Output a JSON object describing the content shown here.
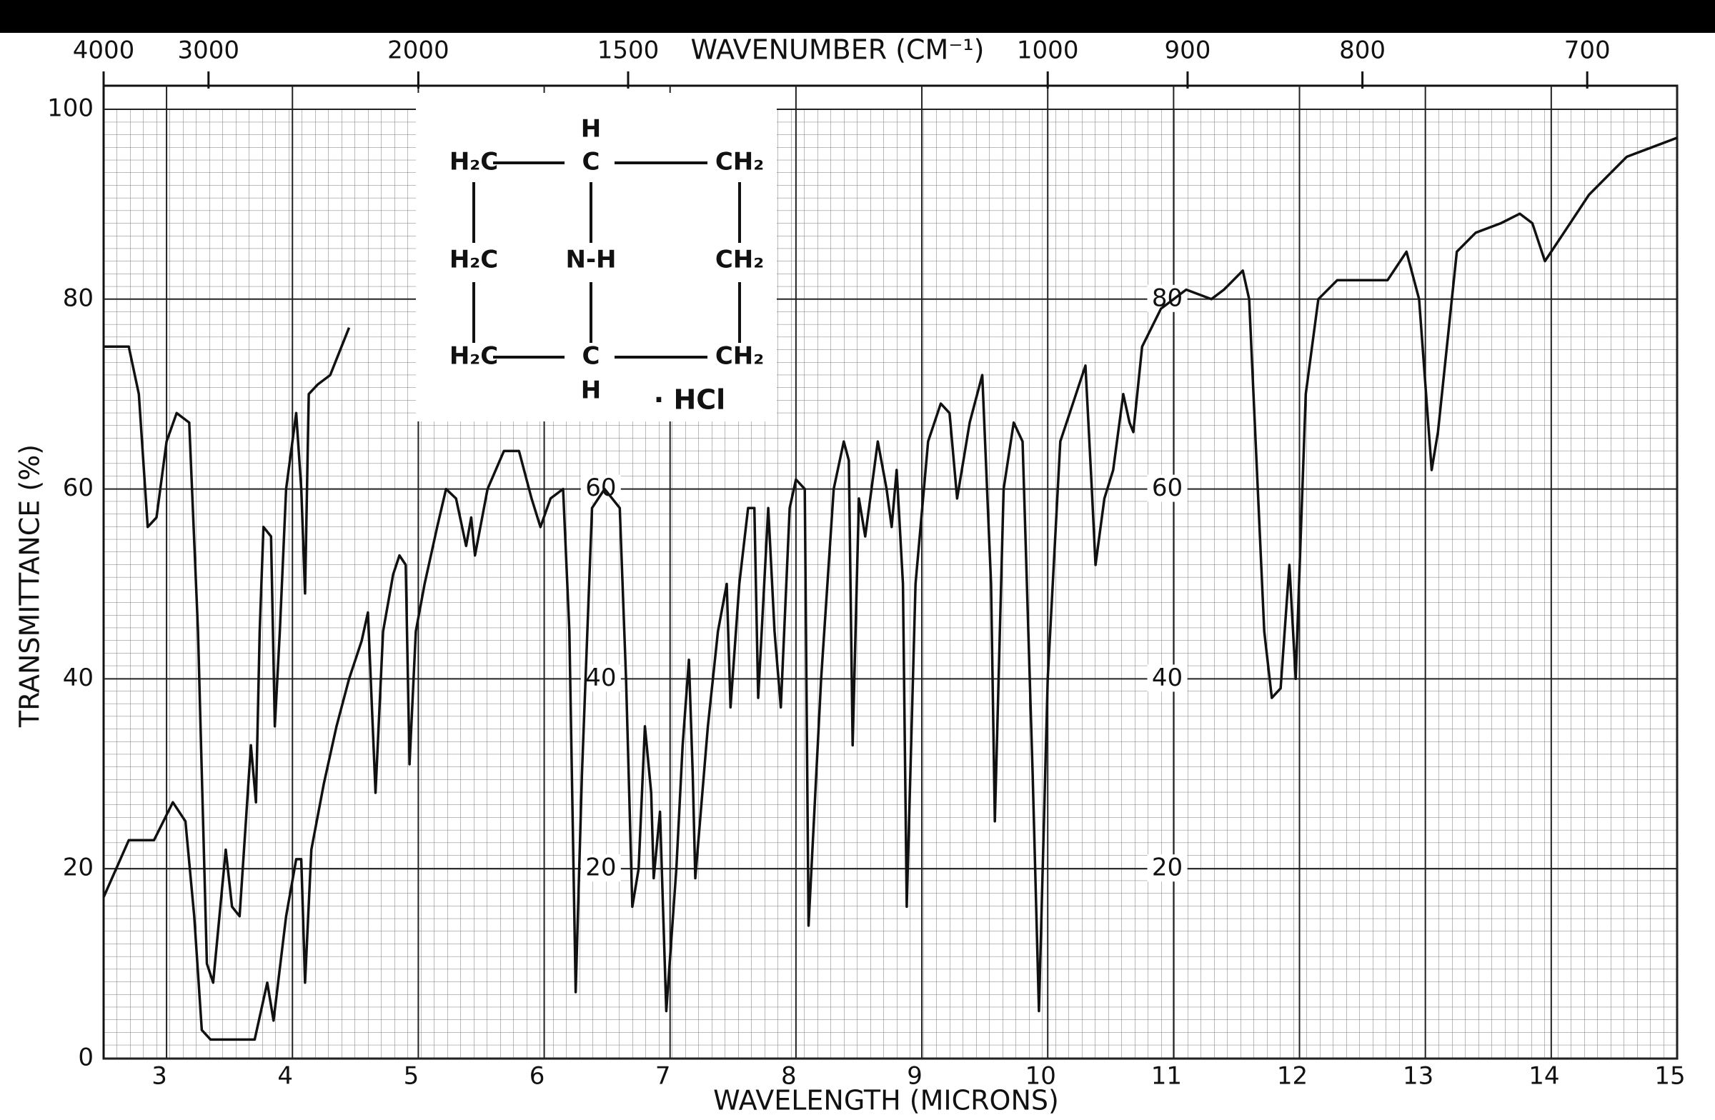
{
  "chart_data": {
    "type": "line",
    "xlabel": "WAVELENGTH (MICRONS)",
    "ylabel": "TRANSMITTANCE (%)",
    "x2label": "WAVENUMBER (CM⁻¹)",
    "xlim": [
      2.5,
      15
    ],
    "xticks": [
      3,
      4,
      5,
      6,
      7,
      8,
      9,
      10,
      11,
      12,
      13,
      14,
      15
    ],
    "ylim": [
      0,
      100
    ],
    "yticks": [
      0,
      20,
      40,
      60,
      80,
      100
    ],
    "x2ticks": [
      4000,
      3000,
      2000,
      1500,
      1000,
      900,
      800,
      700
    ],
    "inner_yticks": [
      20,
      40,
      60,
      80
    ],
    "grid": true,
    "series": [
      {
        "color": "#111111",
        "x": [
          2.5,
          2.7,
          2.78,
          2.85,
          2.92,
          3.0,
          3.08,
          3.18,
          3.25,
          3.32,
          3.37,
          3.42,
          3.47,
          3.52,
          3.58,
          3.63,
          3.67,
          3.71,
          3.74,
          3.77,
          3.83,
          3.86,
          3.9,
          3.95,
          4.03,
          4.07,
          4.1,
          4.13,
          4.2,
          4.3,
          4.45
        ],
        "values": [
          75,
          75,
          70,
          56,
          57,
          65,
          68,
          67,
          45,
          10,
          8,
          15,
          22,
          16,
          15,
          25,
          33,
          27,
          45,
          56,
          55,
          35,
          45,
          60,
          68,
          60,
          49,
          70,
          71,
          72,
          77
        ]
      },
      {
        "color": "#111111",
        "x": [
          2.5,
          2.7,
          2.9,
          3.05,
          3.15,
          3.22,
          3.28,
          3.35,
          3.7,
          3.8,
          3.85,
          3.95,
          4.03,
          4.07,
          4.1,
          4.15,
          4.25,
          4.35,
          4.45,
          4.55,
          4.6,
          4.66,
          4.72,
          4.8,
          4.85,
          4.9,
          4.93,
          4.98,
          5.05,
          5.15,
          5.22,
          5.3,
          5.38,
          5.42,
          5.45,
          5.55,
          5.68,
          5.8,
          5.9,
          5.97,
          6.05,
          6.15,
          6.2,
          6.25,
          6.3,
          6.38,
          6.48,
          6.6,
          6.65,
          6.7,
          6.75,
          6.8,
          6.85,
          6.87,
          6.92,
          6.97,
          7.05,
          7.1,
          7.15,
          7.18,
          7.2,
          7.3,
          7.38,
          7.45,
          7.48,
          7.55,
          7.62,
          7.67,
          7.7,
          7.78,
          7.83,
          7.88,
          7.95,
          8.0,
          8.07,
          8.1,
          8.2,
          8.3,
          8.38,
          8.42,
          8.45,
          8.5,
          8.55,
          8.65,
          8.72,
          8.76,
          8.8,
          8.85,
          8.88,
          8.95,
          9.05,
          9.15,
          9.22,
          9.28,
          9.38,
          9.48,
          9.55,
          9.58,
          9.65,
          9.73,
          9.8,
          9.88,
          9.93,
          10.0,
          10.1,
          10.2,
          10.3,
          10.35,
          10.38,
          10.45,
          10.52,
          10.6,
          10.65,
          10.68,
          10.75,
          10.9,
          11.1,
          11.3,
          11.4,
          11.55,
          11.6,
          11.72,
          11.78,
          11.85,
          11.92,
          11.97,
          12.05,
          12.15,
          12.3,
          12.7,
          12.85,
          12.95,
          13.05,
          13.1,
          13.25,
          13.4,
          13.6,
          13.75,
          13.85,
          13.95,
          14.1,
          14.3,
          14.6,
          14.8,
          15.0
        ],
        "values": [
          17,
          23,
          23,
          27,
          25,
          15,
          3,
          2,
          2,
          8,
          4,
          15,
          21,
          21,
          8,
          22,
          29,
          35,
          40,
          44,
          47,
          28,
          45,
          51,
          53,
          52,
          31,
          45,
          50,
          56,
          60,
          59,
          54,
          57,
          53,
          60,
          64,
          64,
          59,
          56,
          59,
          60,
          45,
          7,
          30,
          58,
          60,
          58,
          40,
          16,
          20,
          35,
          28,
          19,
          26,
          5,
          20,
          33,
          42,
          30,
          19,
          35,
          45,
          50,
          37,
          50,
          58,
          58,
          38,
          58,
          45,
          37,
          58,
          61,
          60,
          14,
          40,
          60,
          65,
          63,
          33,
          59,
          55,
          65,
          60,
          56,
          62,
          50,
          16,
          50,
          65,
          69,
          68,
          59,
          67,
          72,
          50,
          25,
          60,
          67,
          65,
          30,
          5,
          40,
          65,
          69,
          73,
          60,
          52,
          59,
          62,
          70,
          67,
          66,
          75,
          79,
          81,
          80,
          81,
          83,
          80,
          45,
          38,
          39,
          52,
          40,
          70,
          80,
          82,
          82,
          85,
          80,
          62,
          66,
          85,
          87,
          88,
          89,
          88,
          84,
          87,
          91,
          95,
          96,
          97
        ]
      }
    ]
  },
  "inset": {
    "rows": [
      [
        "",
        "H",
        ""
      ],
      [
        "H₂C",
        "C",
        "CH₂"
      ],
      [
        "H₂C",
        "N-H",
        "CH₂"
      ],
      [
        "H₂C",
        "C",
        "CH₂"
      ],
      [
        "",
        "H",
        ""
      ]
    ],
    "salt": "· HCl"
  }
}
